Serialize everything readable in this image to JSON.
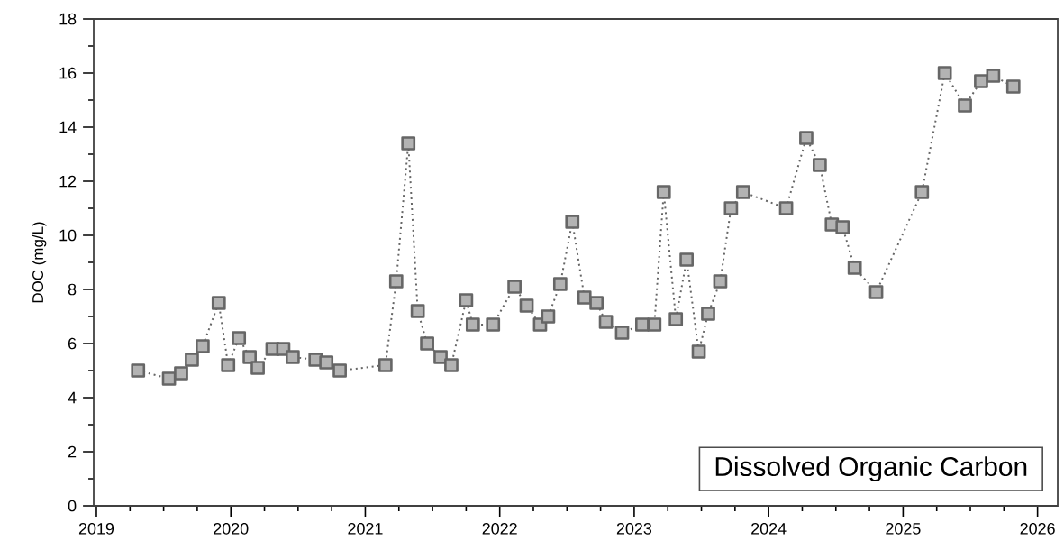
{
  "chart_data": {
    "type": "line",
    "ylabel": "DOC (mg/L)",
    "annotations": [
      "Dissolved Organic Carbon"
    ],
    "x": [
      2019.31,
      2019.54,
      2019.63,
      2019.71,
      2019.79,
      2019.91,
      2019.98,
      2020.06,
      2020.14,
      2020.2,
      2020.31,
      2020.39,
      2020.46,
      2020.63,
      2020.71,
      2020.81,
      2021.15,
      2021.23,
      2021.32,
      2021.39,
      2021.46,
      2021.56,
      2021.64,
      2021.75,
      2021.8,
      2021.95,
      2022.11,
      2022.2,
      2022.3,
      2022.36,
      2022.45,
      2022.54,
      2022.63,
      2022.72,
      2022.79,
      2022.91,
      2023.06,
      2023.15,
      2023.22,
      2023.31,
      2023.39,
      2023.48,
      2023.55,
      2023.64,
      2023.72,
      2023.81,
      2024.13,
      2024.28,
      2024.38,
      2024.47,
      2024.55,
      2024.64,
      2024.8,
      2025.14,
      2025.31,
      2025.46,
      2025.58,
      2025.67,
      2025.82
    ],
    "series": [
      {
        "color": "#b3b3b3",
        "values": [
          5.0,
          4.7,
          4.9,
          5.4,
          5.9,
          7.5,
          5.2,
          6.2,
          5.5,
          5.1,
          5.8,
          5.8,
          5.5,
          5.4,
          5.3,
          5.0,
          5.2,
          8.3,
          13.4,
          7.2,
          6.0,
          5.5,
          5.2,
          7.6,
          6.7,
          6.7,
          8.1,
          7.4,
          6.7,
          7.0,
          8.2,
          10.5,
          7.7,
          7.5,
          6.8,
          6.4,
          6.7,
          6.7,
          11.6,
          6.9,
          9.1,
          5.7,
          7.1,
          8.3,
          11.0,
          11.6,
          11.0,
          13.6,
          12.6,
          10.4,
          10.3,
          8.8,
          7.9,
          11.6,
          16.0,
          14.8,
          15.7,
          15.9,
          15.5
        ]
      }
    ],
    "xlim": [
      2018.98,
      2026.15
    ],
    "ylim": [
      0,
      18
    ],
    "xticks": [
      2019,
      2020,
      2021,
      2022,
      2023,
      2024,
      2025,
      2026
    ],
    "yticks": [
      0,
      2,
      4,
      6,
      8,
      10,
      12,
      14,
      16,
      18
    ],
    "marker": "square",
    "line_style": "dotted"
  }
}
